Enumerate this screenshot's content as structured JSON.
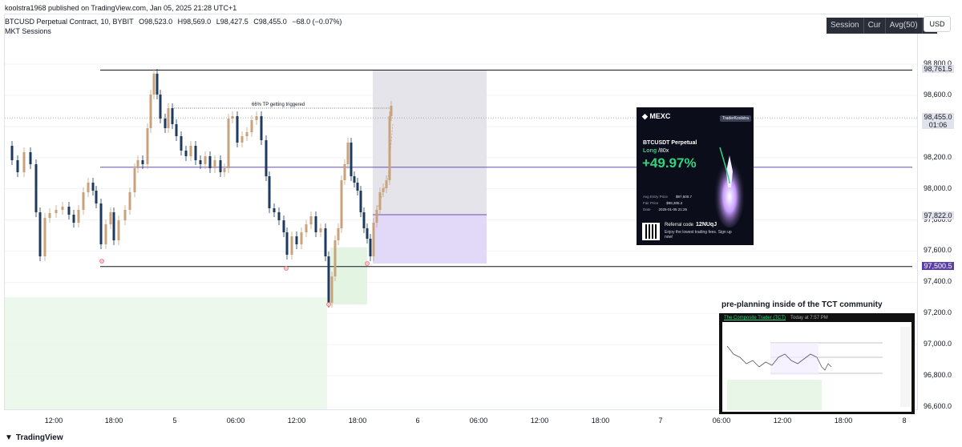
{
  "header": {
    "published": "koolstra1968 published on TradingView.com, Jan 05, 2025 21:28 UTC+1",
    "symbol": "BTCUSD Perpetual Contract, 10, BYBIT",
    "open": "O98,523.0",
    "high": "H98,569.0",
    "low": "L98,427.5",
    "close": "C98,455.0",
    "change": "−68.0 (−0.07%)",
    "indicator": "MKT Sessions"
  },
  "toolbar": {
    "session": "Session",
    "cur": "Cur",
    "avg": "Avg(50)",
    "pct": "%",
    "currency": "USD"
  },
  "footer": {
    "brand": "TradingView"
  },
  "annotation": "66% TP getting triggered",
  "mexc_card": {
    "brand": "MEXC",
    "user_tag": "TraderKoolstra",
    "pair": "BTCUSDT Perpetual",
    "side": "Long",
    "leverage": "/80x",
    "pnl": "+49.97%",
    "rows": [
      {
        "label": "Avg Entry Price",
        "value": "$97,600.7"
      },
      {
        "label": "Fair Price",
        "value": "$98,305.2"
      },
      {
        "label": "Date",
        "value": "2025-01-05 21:25"
      }
    ],
    "referral_label": "Referral code",
    "referral_code": "12NUqJ",
    "referral_sub": "Enjoy the lowest trading fees. Sign up now!"
  },
  "preplanning": {
    "title": "pre-planning inside of the TCT community",
    "channel": "The Composite Trader (TCT)",
    "time": "Today at 7:57 PM"
  },
  "chart_data": {
    "type": "candlestick",
    "timeframe": "10",
    "y_axis": {
      "ticks": [
        96600,
        96800,
        97000,
        97200,
        97400,
        97600,
        97800,
        98000,
        98200,
        98400,
        98600,
        98800
      ],
      "tick_labels": [
        "96,600.0",
        "96,800.0",
        "97,000.0",
        "97,200.0",
        "97,400.0",
        "97,600.0",
        "97,800.0",
        "98,000.0",
        "98,200.0",
        "98,400.0",
        "98,600.0",
        "98,800.0"
      ],
      "range": [
        96550,
        98850
      ]
    },
    "x_axis": {
      "labels": [
        "12:00",
        "18:00",
        "5",
        "06:00",
        "12:00",
        "18:00",
        "6",
        "06:00",
        "12:00",
        "18:00",
        "7",
        "06:00",
        "12:00",
        "18:00",
        "8"
      ]
    },
    "price_tags": [
      {
        "value": 98761.5,
        "label": "98,761.5",
        "style": "gray"
      },
      {
        "value": 98455.0,
        "label": "98,455.0",
        "sub": "01:06",
        "style": "gray"
      },
      {
        "value": 97822.0,
        "label": "97,822.0",
        "style": "gray"
      },
      {
        "value": 97500.5,
        "label": "97,500.5",
        "style": "purple"
      }
    ],
    "levels": [
      {
        "value": 98761.5,
        "color": "#131722"
      },
      {
        "value": 98138,
        "color": "#6a4fb0"
      },
      {
        "value": 97500.5,
        "color": "#131722"
      }
    ],
    "colors": {
      "up": "#c8a27a",
      "down": "#1e3a5f",
      "grid": "#f0f3fa"
    }
  }
}
